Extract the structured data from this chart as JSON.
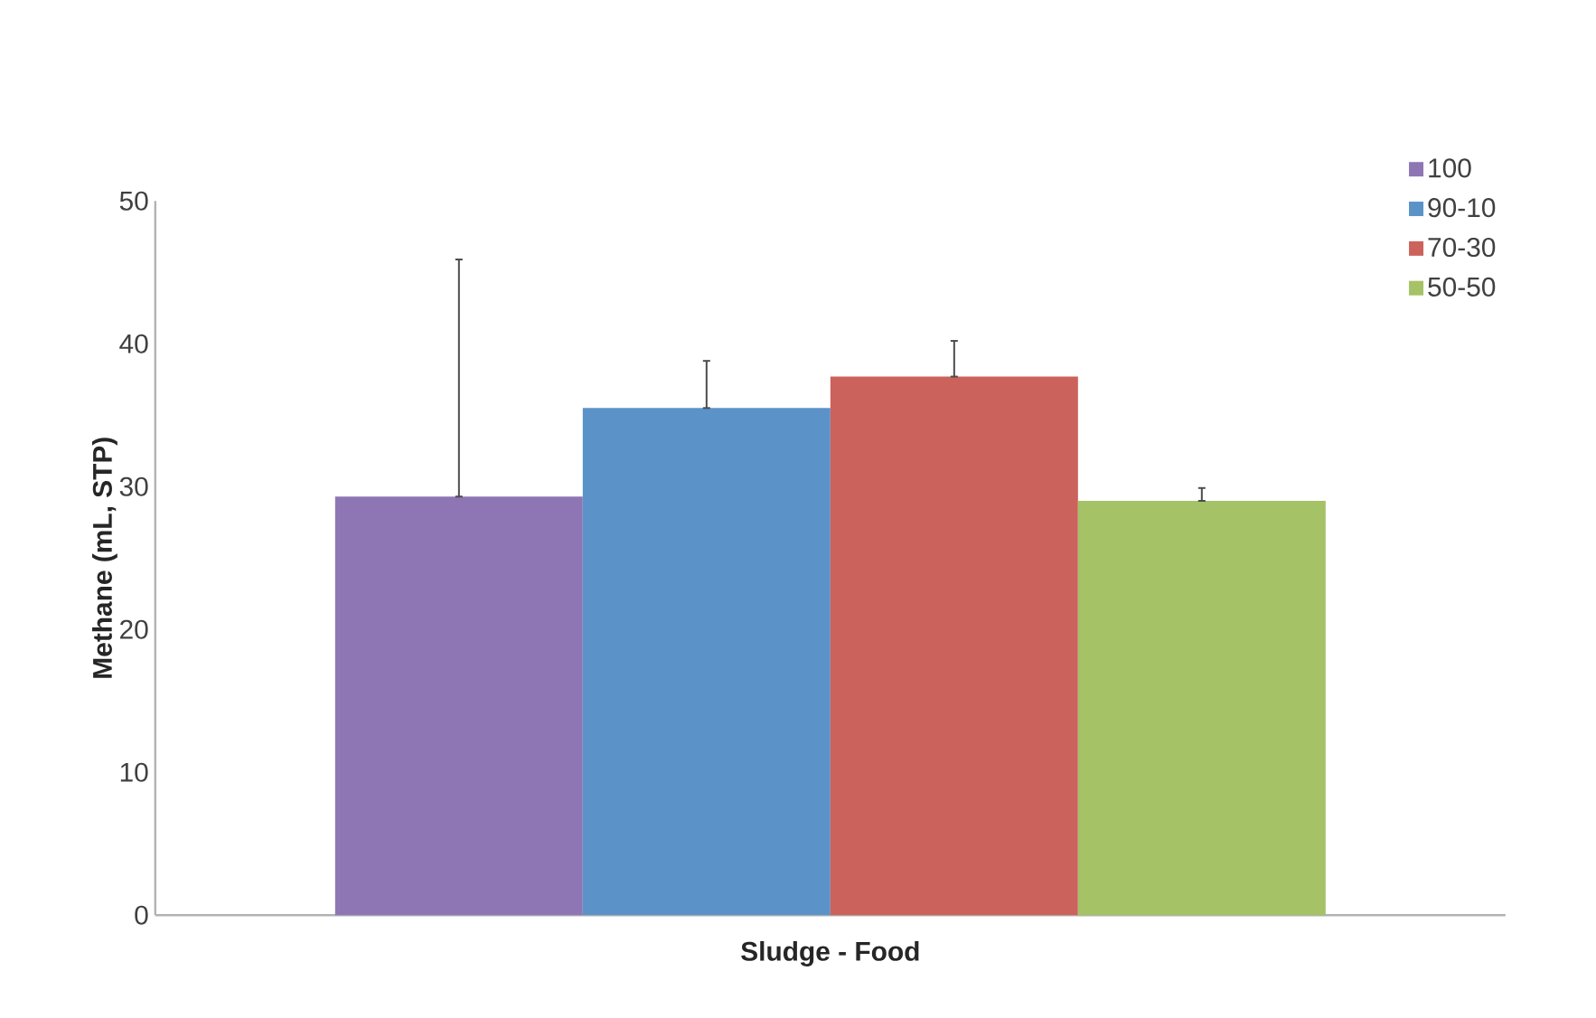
{
  "chart_data": {
    "type": "bar",
    "xlabel": "Sludge - Food",
    "ylabel": "Methane (mL, STP)",
    "categories": [
      null
    ],
    "series": [
      {
        "name": "100",
        "color": "#8e76b4",
        "values": [
          29.3
        ],
        "errors": [
          [
            29.3,
            45.9
          ]
        ]
      },
      {
        "name": "90-10",
        "color": "#5b93c8",
        "values": [
          35.5
        ],
        "errors": [
          [
            35.5,
            38.8
          ]
        ]
      },
      {
        "name": "70-30",
        "color": "#cc625c",
        "values": [
          37.7
        ],
        "errors": [
          [
            37.7,
            40.2
          ]
        ]
      },
      {
        "name": "50-50",
        "color": "#a5c266",
        "values": [
          29.0
        ],
        "errors": [
          [
            29.0,
            29.9
          ]
        ]
      }
    ],
    "ylim": [
      0,
      50
    ],
    "yticks": [
      0,
      10,
      20,
      30,
      40,
      50
    ],
    "grid": false,
    "legend": "top right"
  }
}
